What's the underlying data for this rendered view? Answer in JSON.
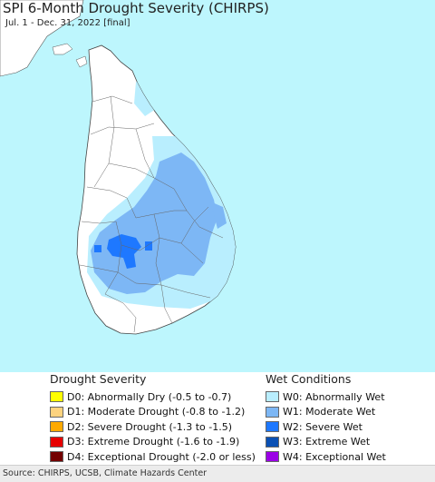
{
  "map": {
    "title": "SPI 6-Month Drought Severity (CHIRPS)",
    "subtitle": "Jul. 1 - Dec. 31, 2022 [final]",
    "ocean_color": "#bdf6fd",
    "land_color": "#ffffff"
  },
  "legend": {
    "drought": {
      "heading": "Drought Severity",
      "items": [
        {
          "label": "D0: Abnormally Dry (-0.5 to -0.7)",
          "color": "#ffff00"
        },
        {
          "label": "D1: Moderate Drought (-0.8 to -1.2)",
          "color": "#fcd37f"
        },
        {
          "label": "D2: Severe Drought (-1.3 to -1.5)",
          "color": "#ffaa00"
        },
        {
          "label": "D3: Extreme Drought (-1.6 to -1.9)",
          "color": "#e60000"
        },
        {
          "label": "D4: Exceptional Drought (-2.0 or less)",
          "color": "#730000"
        }
      ]
    },
    "wet": {
      "heading": "Wet Conditions",
      "items": [
        {
          "label": "W0: Abnormally Wet",
          "color": "#b9eefe"
        },
        {
          "label": "W1: Moderate Wet",
          "color": "#7db7f5"
        },
        {
          "label": "W2: Severe Wet",
          "color": "#1e78ff"
        },
        {
          "label": "W3: Extreme Wet",
          "color": "#0a50b4"
        },
        {
          "label": "W4: Exceptional Wet",
          "color": "#9b00e6"
        }
      ]
    }
  },
  "footer": {
    "source": "Source: CHIRPS, UCSB, Climate Hazards Center"
  }
}
